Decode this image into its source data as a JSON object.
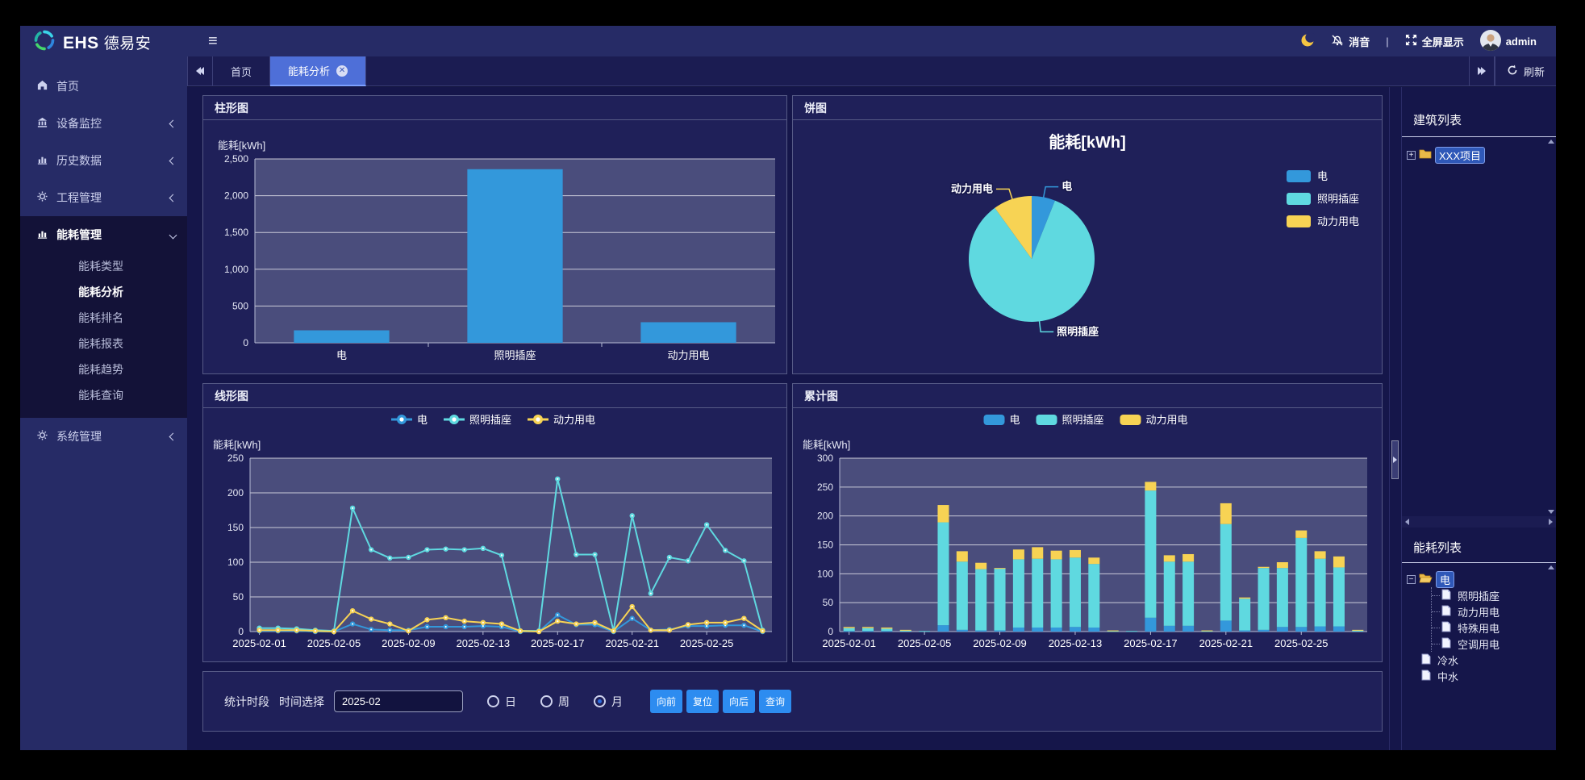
{
  "brand": {
    "name": "EHS 德易安"
  },
  "topbar": {
    "mute": "消音",
    "divider": "|",
    "fullscreen": "全屏显示",
    "user": "admin"
  },
  "sidebar": {
    "items": [
      {
        "label": "首页"
      },
      {
        "label": "设备监控"
      },
      {
        "label": "历史数据"
      },
      {
        "label": "工程管理"
      },
      {
        "label": "能耗管理"
      },
      {
        "label": "系统管理"
      }
    ],
    "submenu": [
      {
        "label": "能耗类型"
      },
      {
        "label": "能耗分析"
      },
      {
        "label": "能耗排名"
      },
      {
        "label": "能耗报表"
      },
      {
        "label": "能耗趋势"
      },
      {
        "label": "能耗查询"
      }
    ]
  },
  "tabs": {
    "home": "首页",
    "active": "能耗分析",
    "refresh": "刷新"
  },
  "panels": {
    "bar": "柱形图",
    "pie": "饼图",
    "line": "线形图",
    "stack": "累计图"
  },
  "rightbar": {
    "building_title": "建筑列表",
    "building_root": "XXX项目",
    "energy_title": "能耗列表",
    "energy_root": "电",
    "energy_children": [
      {
        "label": "照明插座"
      },
      {
        "label": "动力用电"
      },
      {
        "label": "特殊用电"
      },
      {
        "label": "空调用电"
      }
    ],
    "energy_siblings": [
      {
        "label": "冷水"
      },
      {
        "label": "中水"
      }
    ]
  },
  "footer": {
    "period_label": "统计时段",
    "time_label": "时间选择",
    "time_value": "2025-02",
    "radios": [
      {
        "label": "日",
        "checked": false
      },
      {
        "label": "周",
        "checked": false
      },
      {
        "label": "月",
        "checked": true
      }
    ],
    "buttons": [
      {
        "label": "向前"
      },
      {
        "label": "复位"
      },
      {
        "label": "向后"
      },
      {
        "label": "查询"
      }
    ]
  },
  "colors": {
    "blue": "#3398db",
    "cyan": "#5fd9e0",
    "yellow": "#f7d354",
    "active_tab": "#4e6fd8",
    "button": "#2d8cf0"
  },
  "chart_data": [
    {
      "id": "bar-chart",
      "type": "bar",
      "title": "柱形图",
      "ylabel": "能耗[kWh]",
      "ylim": [
        0,
        2500
      ],
      "yticks": [
        0,
        500,
        1000,
        1500,
        2000,
        2500
      ],
      "categories": [
        "电",
        "照明插座",
        "动力用电"
      ],
      "values": [
        170,
        2360,
        280
      ],
      "color": "#3398db",
      "grid": true
    },
    {
      "id": "pie-chart",
      "type": "pie",
      "title": "能耗[kWh]",
      "legend_position": "right",
      "slices": [
        {
          "label": "电",
          "value": 170,
          "color": "#3398db"
        },
        {
          "label": "照明插座",
          "value": 2360,
          "color": "#5fd9e0"
        },
        {
          "label": "动力用电",
          "value": 280,
          "color": "#f7d354"
        }
      ]
    },
    {
      "id": "line-chart",
      "type": "line",
      "title": "线形图",
      "ylabel": "能耗[kWh]",
      "ylim": [
        0,
        250
      ],
      "yticks": [
        0,
        50,
        100,
        150,
        200,
        250
      ],
      "legend_position": "top",
      "grid": true,
      "xtick_every": 4,
      "x": [
        "2025-02-01",
        "2025-02-02",
        "2025-02-03",
        "2025-02-04",
        "2025-02-05",
        "2025-02-06",
        "2025-02-07",
        "2025-02-08",
        "2025-02-09",
        "2025-02-10",
        "2025-02-11",
        "2025-02-12",
        "2025-02-13",
        "2025-02-14",
        "2025-02-15",
        "2025-02-16",
        "2025-02-17",
        "2025-02-18",
        "2025-02-19",
        "2025-02-20",
        "2025-02-21",
        "2025-02-22",
        "2025-02-23",
        "2025-02-24",
        "2025-02-25",
        "2025-02-26",
        "2025-02-27",
        "2025-02-28"
      ],
      "series": [
        {
          "name": "电",
          "color": "#3398db",
          "values": [
            1,
            1,
            1,
            0,
            0,
            11,
            3,
            2,
            2,
            7,
            7,
            7,
            8,
            7,
            0,
            0,
            24,
            10,
            10,
            0,
            19,
            2,
            3,
            8,
            8,
            9,
            9,
            0
          ]
        },
        {
          "name": "照明插座",
          "color": "#5fd9e0",
          "values": [
            5,
            5,
            4,
            2,
            1,
            178,
            118,
            106,
            107,
            118,
            119,
            118,
            120,
            110,
            1,
            1,
            220,
            111,
            111,
            1,
            167,
            55,
            107,
            102,
            154,
            117,
            102,
            2
          ]
        },
        {
          "name": "动力用电",
          "color": "#f7d354",
          "values": [
            2,
            2,
            2,
            1,
            0,
            30,
            18,
            11,
            1,
            17,
            20,
            15,
            13,
            11,
            1,
            0,
            15,
            11,
            13,
            1,
            36,
            2,
            2,
            10,
            13,
            13,
            19,
            1
          ]
        }
      ]
    },
    {
      "id": "stack-chart",
      "type": "stacked_bar",
      "title": "累计图",
      "ylabel": "能耗[kWh]",
      "ylim": [
        0,
        300
      ],
      "yticks": [
        0,
        50,
        100,
        150,
        200,
        250,
        300
      ],
      "legend_position": "top",
      "grid": true,
      "xtick_every": 4,
      "x": [
        "2025-02-01",
        "2025-02-02",
        "2025-02-03",
        "2025-02-04",
        "2025-02-05",
        "2025-02-06",
        "2025-02-07",
        "2025-02-08",
        "2025-02-09",
        "2025-02-10",
        "2025-02-11",
        "2025-02-12",
        "2025-02-13",
        "2025-02-14",
        "2025-02-15",
        "2025-02-16",
        "2025-02-17",
        "2025-02-18",
        "2025-02-19",
        "2025-02-20",
        "2025-02-21",
        "2025-02-22",
        "2025-02-23",
        "2025-02-24",
        "2025-02-25",
        "2025-02-26",
        "2025-02-27",
        "2025-02-28"
      ],
      "series": [
        {
          "name": "电",
          "color": "#3398db",
          "values": [
            1,
            1,
            1,
            0,
            0,
            11,
            3,
            2,
            2,
            7,
            7,
            7,
            8,
            7,
            0,
            0,
            24,
            10,
            10,
            0,
            19,
            2,
            3,
            8,
            8,
            9,
            9,
            0
          ]
        },
        {
          "name": "照明插座",
          "color": "#5fd9e0",
          "values": [
            5,
            5,
            4,
            2,
            1,
            178,
            118,
            106,
            107,
            118,
            119,
            118,
            120,
            110,
            1,
            1,
            220,
            111,
            111,
            1,
            167,
            55,
            107,
            102,
            154,
            117,
            102,
            2
          ]
        },
        {
          "name": "动力用电",
          "color": "#f7d354",
          "values": [
            2,
            2,
            2,
            1,
            0,
            30,
            18,
            11,
            1,
            17,
            20,
            15,
            13,
            11,
            1,
            0,
            15,
            11,
            13,
            1,
            36,
            2,
            2,
            10,
            13,
            13,
            19,
            1
          ]
        }
      ]
    }
  ]
}
